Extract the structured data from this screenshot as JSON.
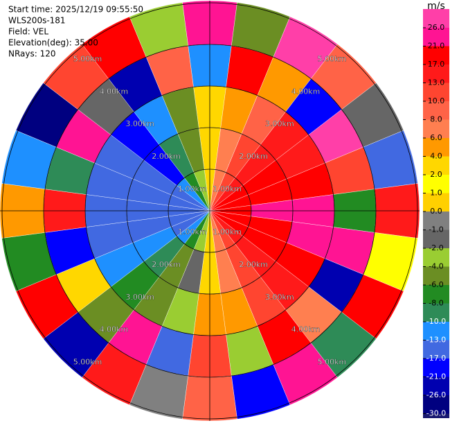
{
  "header": {
    "lines": [
      "Start time: 2025/12/19 09:55:50",
      "WLS200s-181",
      "Field: VEL",
      "Elevation(deg): 35.00",
      "NRays: 120"
    ]
  },
  "colorbar": {
    "unit": "m/s",
    "ticks": [
      {
        "value": 26,
        "label": "26.0"
      },
      {
        "value": 21,
        "label": "21.0"
      },
      {
        "value": 17,
        "label": "17.0"
      },
      {
        "value": 13,
        "label": "13.0"
      },
      {
        "value": 10,
        "label": "10.0"
      },
      {
        "value": 8,
        "label": "8.0"
      },
      {
        "value": 6,
        "label": "6.0"
      },
      {
        "value": 4,
        "label": "4.0"
      },
      {
        "value": 2,
        "label": "2.0"
      },
      {
        "value": 1,
        "label": "1.0"
      },
      {
        "value": 0,
        "label": "0.0"
      },
      {
        "value": -1,
        "label": "-1.0"
      },
      {
        "value": -2,
        "label": "-2.0"
      },
      {
        "value": -4,
        "label": "-4.0"
      },
      {
        "value": -6,
        "label": "-6.0"
      },
      {
        "value": -8,
        "label": "-8.0"
      },
      {
        "value": -10,
        "label": "-10.0"
      },
      {
        "value": -13,
        "label": "-13.0"
      },
      {
        "value": -17,
        "label": "-17.0"
      },
      {
        "value": -21,
        "label": "-21.0"
      },
      {
        "value": -26,
        "label": "-26.0"
      },
      {
        "value": -30,
        "label": "-30.0"
      }
    ],
    "colors": [
      "#ff3fa8",
      "#ff1493",
      "#ff0000",
      "#ff1a1a",
      "#ff4530",
      "#ff6347",
      "#ff7f50",
      "#ff9900",
      "#ffd700",
      "#ffff00",
      "#ffd000",
      "#808080",
      "#666666",
      "#9acd32",
      "#6b8e23",
      "#228b22",
      "#2e8b57",
      "#1e90ff",
      "#4169e1",
      "#0000ff",
      "#0000b0",
      "#000080",
      "#191970"
    ]
  },
  "rings": [
    {
      "label": "1.00km",
      "radius_km": 1
    },
    {
      "label": "2.00km",
      "radius_km": 2
    },
    {
      "label": "3.00km",
      "radius_km": 3
    },
    {
      "label": "4.00km",
      "radius_km": 4
    },
    {
      "label": "5.00km",
      "radius_km": 5
    }
  ],
  "field": {
    "max_range_km": 5.05,
    "azimuths": [
      0,
      15,
      30,
      45,
      60,
      75,
      90,
      105,
      120,
      135,
      150,
      165,
      180,
      195,
      210,
      225,
      240,
      255,
      270,
      285,
      300,
      315,
      330,
      345
    ],
    "gate_edges_km": [
      0,
      1,
      2,
      3,
      4,
      5.05
    ],
    "values": [
      [
        2,
        3,
        3,
        -13,
        22
      ],
      [
        7,
        6,
        5,
        17,
        -6
      ],
      [
        11,
        10,
        9,
        4,
        26
      ],
      [
        15,
        14,
        13,
        -21,
        8
      ],
      [
        18,
        17,
        16,
        26,
        -2
      ],
      [
        19,
        20,
        19,
        10,
        -17
      ],
      [
        20,
        21,
        22,
        -8,
        13
      ],
      [
        19,
        20,
        21,
        23,
        1
      ],
      [
        18,
        19,
        18,
        -26,
        17
      ],
      [
        15,
        16,
        14,
        6,
        -10
      ],
      [
        11,
        12,
        10,
        19,
        24
      ],
      [
        7,
        6,
        5,
        -4,
        -21
      ],
      [
        2,
        3,
        4,
        12,
        9
      ],
      [
        -3,
        -2,
        -3,
        -17,
        -1
      ],
      [
        -7,
        -6,
        -5,
        24,
        15
      ],
      [
        -11,
        -9,
        -8,
        -6,
        -26
      ],
      [
        -14,
        -13,
        -12,
        2,
        20
      ],
      [
        -15,
        -16,
        -14,
        -21,
        -8
      ],
      [
        -16,
        -17,
        -15,
        14,
        5
      ],
      [
        -15,
        -16,
        -17,
        -10,
        -13
      ],
      [
        -14,
        -15,
        -16,
        21,
        -30
      ],
      [
        -11,
        -18,
        -19,
        -2,
        11
      ],
      [
        -7,
        -9,
        -12,
        -26,
        17
      ],
      [
        -3,
        -5,
        -6,
        8,
        -4
      ]
    ]
  }
}
